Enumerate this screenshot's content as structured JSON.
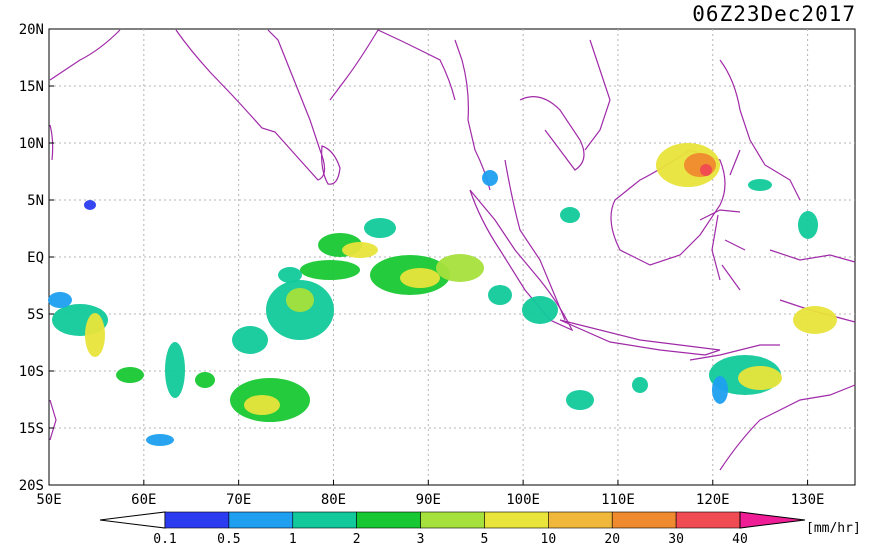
{
  "title": "06Z23Dec2017",
  "units": "[mm/hr]",
  "lat_labels": [
    "20N",
    "15N",
    "10N",
    "5N",
    "EQ",
    "5S",
    "10S",
    "15S",
    "20S"
  ],
  "lon_labels": [
    "50E",
    "60E",
    "70E",
    "80E",
    "90E",
    "100E",
    "110E",
    "120E",
    "130E"
  ],
  "colorbar": {
    "ticks": [
      "0.1",
      "0.5",
      "1",
      "2",
      "3",
      "5",
      "10",
      "20",
      "30",
      "40"
    ],
    "colors": [
      "#ffffff",
      "#2b3cf0",
      "#1e9ff0",
      "#11c99a",
      "#18c832",
      "#a6e03c",
      "#e8e43a",
      "#f0b83a",
      "#f08a2e",
      "#f04a52",
      "#f01e96"
    ]
  },
  "colors": {
    "coast": "#a02aa8",
    "grid": "#b4b4b4"
  }
}
